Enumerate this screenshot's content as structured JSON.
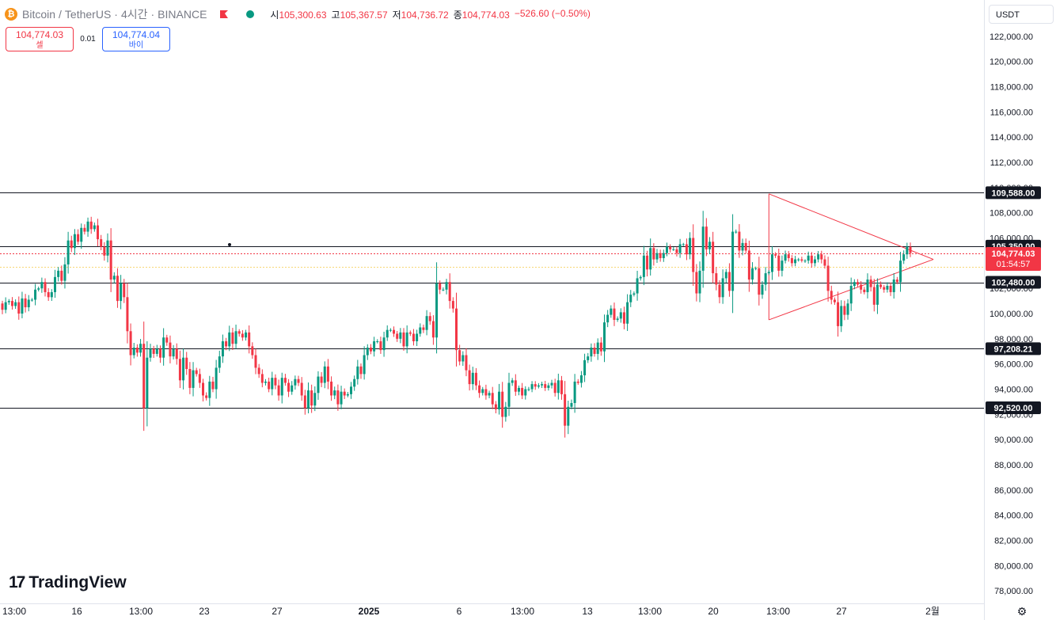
{
  "header": {
    "symbol": "Bitcoin",
    "slash": "/",
    "quote": "TetherUS",
    "dot1": "·",
    "interval": "4시간",
    "dot2": "·",
    "exchange": "BINANCE",
    "open_label": "시",
    "open": "105,300.63",
    "high_label": "고",
    "high": "105,367.57",
    "low_label": "저",
    "low": "104,736.72",
    "close_label": "종",
    "close": "104,774.03",
    "change": "−526.60 (−0.50%)"
  },
  "trade": {
    "sell_price": "104,774.03",
    "sell_label": "셀",
    "spread": "0.01",
    "buy_price": "104,774.04",
    "buy_label": "바이"
  },
  "currency_selector": "USDT",
  "brand": "TradingView",
  "colors": {
    "up": "#089981",
    "down": "#f23645",
    "line": "#131722",
    "triangle": "#f23645",
    "price_tag": "#f23645"
  },
  "chart_data": {
    "type": "candlestick",
    "ylim": [
      77000,
      123000
    ],
    "y_ticks": [
      78000,
      80000,
      82000,
      84000,
      86000,
      88000,
      90000,
      92000,
      94000,
      96000,
      98000,
      100000,
      102000,
      104000,
      106000,
      108000,
      110000,
      112000,
      114000,
      116000,
      118000,
      120000,
      122000
    ],
    "x_ticks": [
      "13:00",
      "16",
      "13:00",
      "23",
      "27",
      "2025",
      "6",
      "13:00",
      "13",
      "13:00",
      "20",
      "13:00",
      "27",
      "2월"
    ],
    "horizontal_levels": [
      {
        "value": 109588.0,
        "label": "109,588.00"
      },
      {
        "value": 105350.0,
        "label": "105,350.00"
      },
      {
        "value": 102480.0,
        "label": "102,480.00"
      },
      {
        "value": 97208.21,
        "label": "97,208.21"
      },
      {
        "value": 92520.0,
        "label": "92,520.00"
      }
    ],
    "current_price": {
      "value": 104774.03,
      "label": "104,774.03",
      "countdown": "01:54:57"
    },
    "triangle": {
      "apex_bar": 283,
      "upper": [
        [
          233,
          109500
        ],
        [
          283,
          104300
        ]
      ],
      "lower": [
        [
          233,
          99500
        ],
        [
          283,
          104300
        ]
      ]
    },
    "closes": [
      100300,
      100900,
      101000,
      100600,
      100900,
      100000,
      101200,
      100500,
      101100,
      101100,
      101900,
      102000,
      102500,
      101700,
      101300,
      101700,
      102900,
      103400,
      102600,
      103900,
      105800,
      105200,
      106300,
      105700,
      106800,
      106500,
      107300,
      106700,
      107000,
      105900,
      105300,
      104600,
      105800,
      102700,
      103000,
      101000,
      102400,
      101300,
      98600,
      96700,
      97300,
      96900,
      97600,
      92500,
      96500,
      97200,
      96800,
      97200,
      96500,
      98100,
      97700,
      96600,
      97200,
      96400,
      94700,
      96500,
      95600,
      94100,
      95500,
      95200,
      94500,
      93500,
      93300,
      94600,
      94000,
      95700,
      96600,
      97800,
      97400,
      98500,
      97600,
      98600,
      98400,
      98100,
      98500,
      97400,
      96700,
      95700,
      95200,
      94500,
      94600,
      94000,
      94900,
      94300,
      93500,
      94900,
      94500,
      93800,
      94300,
      94800,
      94500,
      93500,
      92500,
      93900,
      92700,
      93700,
      95000,
      94500,
      95800,
      94600,
      93500,
      93900,
      92800,
      93800,
      93500,
      93600,
      94200,
      94800,
      95800,
      95200,
      96700,
      97300,
      97000,
      97800,
      97800,
      97100,
      98100,
      98700,
      98700,
      98400,
      98000,
      98500,
      97400,
      98500,
      98400,
      97800,
      98400,
      98900,
      98700,
      99800,
      99400,
      98100,
      102400,
      101900,
      101900,
      102500,
      101000,
      100400,
      97100,
      96200,
      96700,
      95500,
      94400,
      95300,
      94300,
      93700,
      94000,
      93500,
      93700,
      92800,
      92400,
      93800,
      91800,
      92600,
      94500,
      94700,
      93800,
      94100,
      93500,
      94000,
      94000,
      94400,
      94200,
      94300,
      94400,
      94100,
      94300,
      94500,
      93700,
      94700,
      93600,
      91100,
      92600,
      92900,
      94600,
      94500,
      95100,
      96300,
      96600,
      97300,
      96800,
      97700,
      97000,
      99300,
      99900,
      100400,
      99500,
      99600,
      100100,
      99200,
      100900,
      101500,
      101600,
      102800,
      102900,
      104600,
      103500,
      105200,
      104300,
      104800,
      104400,
      104800,
      105300,
      105100,
      105100,
      104800,
      105500,
      105500,
      104700,
      106000,
      103300,
      101600,
      103400,
      106900,
      105100,
      105700,
      103200,
      102300,
      101300,
      102800,
      103300,
      101800,
      106500,
      106500,
      105000,
      105600,
      105000,
      102700,
      103600,
      103600,
      101500,
      102300,
      103200,
      103300,
      104700,
      104600,
      103400,
      104200,
      104700,
      104400,
      104000,
      104300,
      104300,
      104200,
      104200,
      104600,
      104000,
      104300,
      104700,
      104300,
      103800,
      101800,
      101100,
      100900,
      99000,
      100600,
      99900,
      100800,
      102200,
      102500,
      102300,
      101900,
      101700,
      102700,
      102100,
      100700,
      102300,
      102100,
      101900,
      102200,
      101700,
      102700,
      102500,
      104200,
      104700,
      105300,
      104800
    ]
  }
}
